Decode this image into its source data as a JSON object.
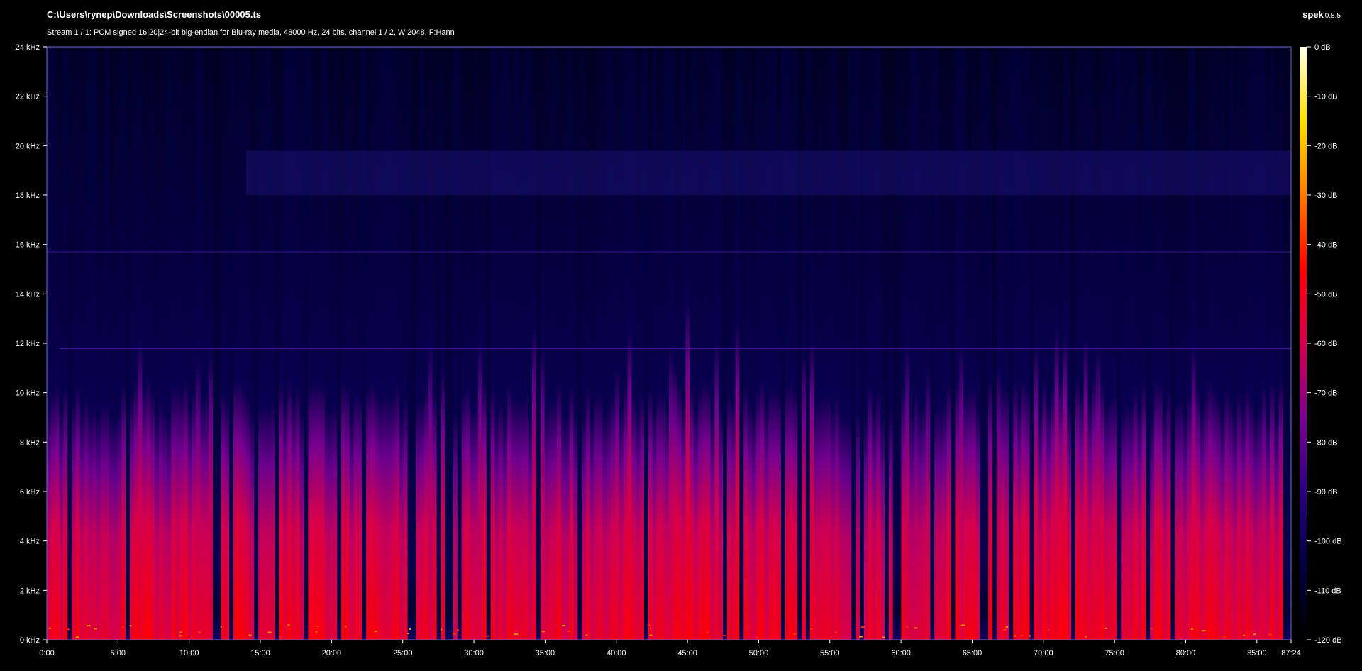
{
  "header": {
    "file_path": "C:\\Users\\rynep\\Downloads\\Screenshots\\00005.ts",
    "stream_info": "Stream 1 / 1: PCM signed 16|20|24-bit big-endian for Blu-ray media, 48000 Hz, 24 bits, channel 1 / 2, W:2048, F:Hann",
    "app_name": "spek",
    "app_version": "0.8.5"
  },
  "colors": {
    "background": "#000000",
    "palette": [
      "#000000",
      "#000040",
      "#2a007f",
      "#7a0090",
      "#d3004f",
      "#ff0000",
      "#ff7a00",
      "#ffe000",
      "#ffffe8"
    ]
  },
  "chart_data": {
    "type": "heatmap",
    "title": "",
    "xlabel": "",
    "ylabel": "",
    "x_unit": "time (mm:ss)",
    "xlim": [
      0,
      5244
    ],
    "ylim_khz": [
      0,
      24
    ],
    "x_ticks": [
      "0:00",
      "5:00",
      "10:00",
      "15:00",
      "20:00",
      "25:00",
      "30:00",
      "35:00",
      "40:00",
      "45:00",
      "50:00",
      "55:00",
      "60:00",
      "65:00",
      "70:00",
      "75:00",
      "80:00",
      "85:00",
      "87:24"
    ],
    "x_tick_seconds": [
      0,
      300,
      600,
      900,
      1200,
      1500,
      1800,
      2100,
      2400,
      2700,
      3000,
      3300,
      3600,
      3900,
      4200,
      4500,
      4800,
      5100,
      5244
    ],
    "y_ticks": [
      "0 kHz",
      "2 kHz",
      "4 kHz",
      "6 kHz",
      "8 kHz",
      "10 kHz",
      "12 kHz",
      "14 kHz",
      "16 kHz",
      "18 kHz",
      "20 kHz",
      "22 kHz",
      "24 kHz"
    ],
    "y_tick_khz": [
      0,
      2,
      4,
      6,
      8,
      10,
      12,
      14,
      16,
      18,
      20,
      22,
      24
    ],
    "colorbar_ticks": [
      "0 dB",
      "-10 dB",
      "-20 dB",
      "-30 dB",
      "-40 dB",
      "-50 dB",
      "-60 dB",
      "-70 dB",
      "-80 dB",
      "-90 dB",
      "-100 dB",
      "-110 dB",
      "-120 dB"
    ],
    "colorbar_db": [
      0,
      -10,
      -20,
      -30,
      -40,
      -50,
      -60,
      -70,
      -80,
      -90,
      -100,
      -110,
      -120
    ],
    "colorbar_range_db": [
      -120,
      0
    ],
    "features": {
      "tone_lines_khz": [
        11.8,
        15.7
      ],
      "noise_band_khz": [
        18.0,
        19.8
      ],
      "noise_band_start_seconds": 840,
      "typical_cutoff_khz": 8,
      "legend": "right"
    }
  }
}
